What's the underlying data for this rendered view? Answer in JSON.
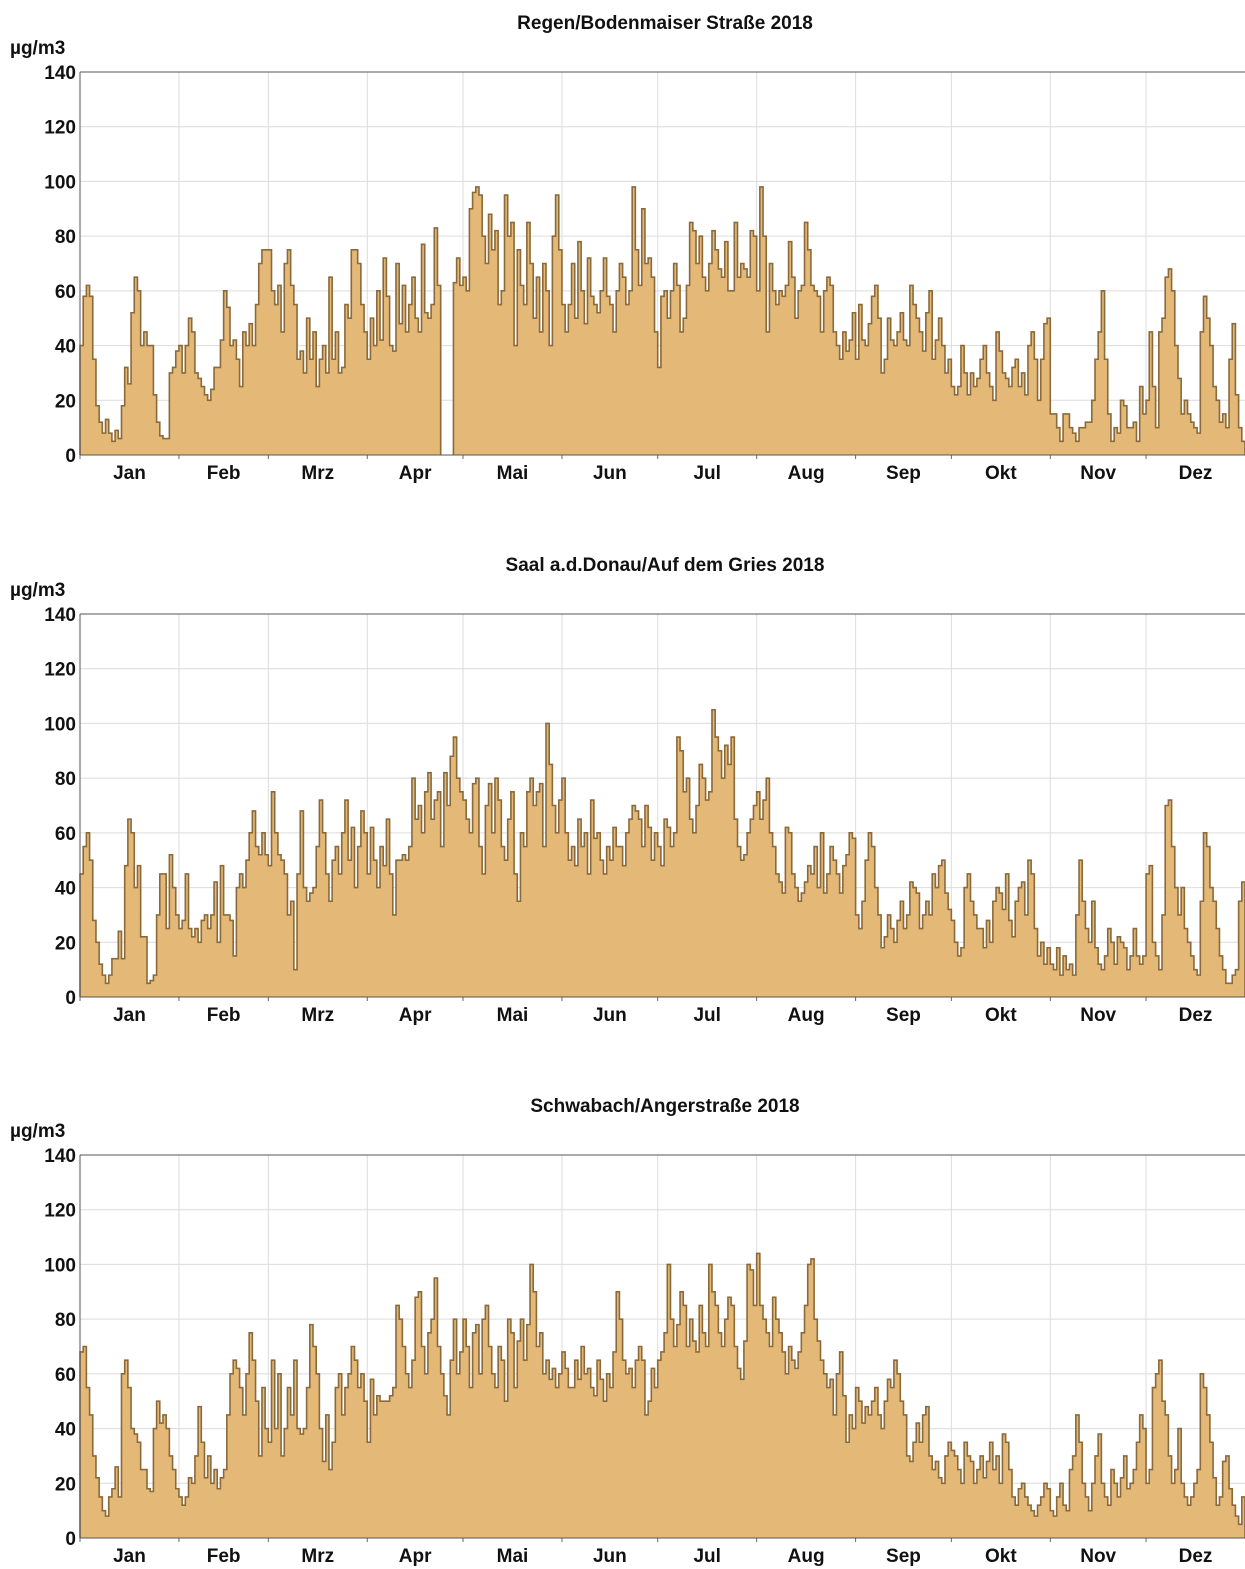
{
  "chart_data": [
    {
      "type": "step-area",
      "title": "Regen/Bodenmaiser Straße 2018",
      "y_label": "µg/m3",
      "color": "#e4b978",
      "line_color": "#8a6a3a",
      "grid": true,
      "xlim": [
        0,
        365
      ],
      "xticks": [
        {
          "value": 0,
          "label": "Jan"
        },
        {
          "value": 31,
          "label": "Feb"
        },
        {
          "value": 59,
          "label": "Mrz"
        },
        {
          "value": 90,
          "label": "Apr"
        },
        {
          "value": 120,
          "label": "Mai"
        },
        {
          "value": 151,
          "label": "Jun"
        },
        {
          "value": 181,
          "label": "Jul"
        },
        {
          "value": 212,
          "label": "Aug"
        },
        {
          "value": 243,
          "label": "Sep"
        },
        {
          "value": 273,
          "label": "Okt"
        },
        {
          "value": 304,
          "label": "Nov"
        },
        {
          "value": 334,
          "label": "Dez"
        }
      ],
      "ylim": [
        0,
        140
      ],
      "yticks": [
        0,
        20,
        40,
        60,
        80,
        100,
        120,
        140
      ],
      "values": [
        40,
        58,
        62,
        58,
        35,
        18,
        12,
        8,
        13,
        8,
        5,
        9,
        6,
        18,
        32,
        26,
        52,
        65,
        60,
        40,
        45,
        40,
        40,
        22,
        12,
        7,
        6,
        6,
        30,
        32,
        38,
        40,
        30,
        40,
        50,
        45,
        30,
        28,
        25,
        22,
        20,
        24,
        32,
        32,
        42,
        60,
        54,
        40,
        42,
        35,
        25,
        45,
        40,
        48,
        40,
        55,
        70,
        75,
        75,
        75,
        60,
        55,
        62,
        45,
        70,
        75,
        62,
        55,
        35,
        38,
        30,
        50,
        35,
        45,
        25,
        35,
        40,
        30,
        65,
        35,
        45,
        30,
        32,
        55,
        50,
        75,
        75,
        70,
        55,
        45,
        35,
        50,
        40,
        60,
        42,
        72,
        58,
        40,
        38,
        70,
        48,
        62,
        45,
        55,
        65,
        50,
        45,
        77,
        52,
        50,
        55,
        83,
        62,
        null,
        null,
        null,
        null,
        63,
        72,
        62,
        65,
        60,
        90,
        96,
        98,
        95,
        80,
        70,
        88,
        75,
        82,
        55,
        60,
        95,
        80,
        85,
        40,
        75,
        62,
        55,
        85,
        70,
        50,
        65,
        45,
        70,
        60,
        40,
        80,
        95,
        75,
        55,
        45,
        55,
        70,
        50,
        78,
        60,
        48,
        72,
        58,
        55,
        52,
        60,
        72,
        58,
        55,
        45,
        60,
        70,
        65,
        55,
        60,
        98,
        75,
        62,
        90,
        70,
        72,
        65,
        45,
        32,
        58,
        60,
        50,
        60,
        70,
        62,
        45,
        50,
        62,
        85,
        82,
        70,
        80,
        65,
        60,
        70,
        82,
        75,
        68,
        65,
        78,
        60,
        60,
        85,
        65,
        70,
        68,
        65,
        82,
        80,
        60,
        98,
        80,
        45,
        70,
        60,
        55,
        60,
        58,
        62,
        78,
        65,
        50,
        60,
        62,
        85,
        75,
        62,
        60,
        58,
        45,
        60,
        65,
        62,
        45,
        40,
        35,
        45,
        38,
        42,
        52,
        35,
        55,
        42,
        40,
        48,
        58,
        62,
        50,
        30,
        35,
        50,
        42,
        40,
        45,
        52,
        42,
        40,
        62,
        55,
        50,
        45,
        38,
        52,
        60,
        35,
        42,
        50,
        40,
        30,
        35,
        25,
        22,
        25,
        40,
        30,
        22,
        30,
        25,
        28,
        35,
        40,
        30,
        25,
        20,
        45,
        38,
        30,
        28,
        25,
        32,
        35,
        25,
        30,
        22,
        40,
        45,
        35,
        20,
        35,
        48,
        50,
        15,
        15,
        10,
        5,
        15,
        15,
        10,
        8,
        5,
        10,
        10,
        12,
        12,
        20,
        35,
        45,
        60,
        35,
        15,
        5,
        10,
        8,
        20,
        18,
        10,
        10,
        12,
        5,
        25,
        15,
        20,
        45,
        25,
        10,
        45,
        50,
        65,
        68,
        60,
        40,
        28,
        15,
        20,
        15,
        12,
        10,
        8,
        45,
        58,
        50,
        40,
        25,
        20,
        12,
        15,
        10,
        35,
        48,
        22,
        10,
        5
      ]
    },
    {
      "type": "step-area",
      "title": "Saal a.d.Donau/Auf dem Gries 2018",
      "y_label": "µg/m3",
      "color": "#e4b978",
      "line_color": "#8a6a3a",
      "grid": true,
      "xlim": [
        0,
        365
      ],
      "xticks": [
        {
          "value": 0,
          "label": "Jan"
        },
        {
          "value": 31,
          "label": "Feb"
        },
        {
          "value": 59,
          "label": "Mrz"
        },
        {
          "value": 90,
          "label": "Apr"
        },
        {
          "value": 120,
          "label": "Mai"
        },
        {
          "value": 151,
          "label": "Jun"
        },
        {
          "value": 181,
          "label": "Jul"
        },
        {
          "value": 212,
          "label": "Aug"
        },
        {
          "value": 243,
          "label": "Sep"
        },
        {
          "value": 273,
          "label": "Okt"
        },
        {
          "value": 304,
          "label": "Nov"
        },
        {
          "value": 334,
          "label": "Dez"
        }
      ],
      "ylim": [
        0,
        140
      ],
      "yticks": [
        0,
        20,
        40,
        60,
        80,
        100,
        120,
        140
      ],
      "values": [
        45,
        55,
        60,
        50,
        28,
        20,
        12,
        8,
        5,
        8,
        14,
        14,
        24,
        14,
        48,
        65,
        60,
        40,
        48,
        22,
        22,
        5,
        6,
        8,
        30,
        45,
        45,
        25,
        52,
        40,
        30,
        25,
        28,
        45,
        25,
        22,
        25,
        20,
        28,
        30,
        25,
        30,
        42,
        20,
        48,
        30,
        30,
        28,
        15,
        40,
        45,
        40,
        50,
        60,
        68,
        55,
        52,
        60,
        52,
        48,
        75,
        60,
        52,
        50,
        45,
        30,
        35,
        10,
        45,
        68,
        40,
        35,
        38,
        40,
        55,
        72,
        60,
        45,
        35,
        50,
        55,
        45,
        60,
        72,
        50,
        62,
        40,
        55,
        68,
        60,
        45,
        62,
        50,
        40,
        55,
        48,
        65,
        45,
        30,
        50,
        50,
        52,
        50,
        55,
        80,
        65,
        70,
        60,
        75,
        82,
        65,
        72,
        75,
        55,
        82,
        70,
        88,
        95,
        80,
        75,
        72,
        65,
        60,
        78,
        80,
        55,
        45,
        70,
        78,
        60,
        80,
        72,
        55,
        50,
        65,
        75,
        45,
        35,
        60,
        55,
        75,
        80,
        70,
        75,
        78,
        55,
        100,
        85,
        70,
        60,
        72,
        80,
        60,
        50,
        55,
        48,
        65,
        55,
        60,
        45,
        72,
        58,
        60,
        50,
        45,
        55,
        50,
        62,
        55,
        55,
        48,
        60,
        65,
        70,
        68,
        65,
        55,
        70,
        62,
        50,
        60,
        55,
        48,
        65,
        62,
        55,
        60,
        95,
        90,
        75,
        80,
        65,
        60,
        70,
        85,
        80,
        72,
        75,
        105,
        95,
        90,
        80,
        92,
        85,
        95,
        65,
        55,
        50,
        52,
        60,
        65,
        70,
        75,
        65,
        72,
        80,
        60,
        55,
        45,
        42,
        38,
        62,
        60,
        45,
        40,
        35,
        38,
        42,
        48,
        45,
        55,
        40,
        60,
        38,
        45,
        55,
        50,
        45,
        38,
        48,
        52,
        60,
        58,
        30,
        25,
        35,
        50,
        60,
        55,
        40,
        30,
        18,
        22,
        30,
        25,
        20,
        28,
        35,
        25,
        30,
        42,
        40,
        38,
        25,
        30,
        35,
        30,
        45,
        40,
        48,
        50,
        38,
        32,
        28,
        20,
        15,
        18,
        40,
        45,
        35,
        30,
        25,
        25,
        18,
        28,
        20,
        35,
        40,
        38,
        32,
        45,
        28,
        22,
        35,
        40,
        42,
        30,
        50,
        45,
        25,
        15,
        20,
        12,
        18,
        12,
        10,
        18,
        8,
        15,
        10,
        12,
        8,
        30,
        50,
        35,
        25,
        20,
        35,
        18,
        12,
        10,
        15,
        25,
        20,
        12,
        22,
        20,
        18,
        10,
        15,
        25,
        15,
        12,
        15,
        45,
        48,
        20,
        15,
        10,
        30,
        70,
        72,
        55,
        40,
        30,
        40,
        25,
        20,
        15,
        10,
        8,
        35,
        60,
        55,
        40,
        35,
        25,
        15,
        10,
        5,
        5,
        8,
        10,
        35,
        42
      ]
    },
    {
      "type": "step-area",
      "title": "Schwabach/Angerstraße 2018",
      "y_label": "µg/m3",
      "color": "#e4b978",
      "line_color": "#8a6a3a",
      "grid": true,
      "xlim": [
        0,
        365
      ],
      "xticks": [
        {
          "value": 0,
          "label": "Jan"
        },
        {
          "value": 31,
          "label": "Feb"
        },
        {
          "value": 59,
          "label": "Mrz"
        },
        {
          "value": 90,
          "label": "Apr"
        },
        {
          "value": 120,
          "label": "Mai"
        },
        {
          "value": 151,
          "label": "Jun"
        },
        {
          "value": 181,
          "label": "Jul"
        },
        {
          "value": 212,
          "label": "Aug"
        },
        {
          "value": 243,
          "label": "Sep"
        },
        {
          "value": 273,
          "label": "Okt"
        },
        {
          "value": 304,
          "label": "Nov"
        },
        {
          "value": 334,
          "label": "Dez"
        }
      ],
      "ylim": [
        0,
        140
      ],
      "yticks": [
        0,
        20,
        40,
        60,
        80,
        100,
        120,
        140
      ],
      "values": [
        68,
        70,
        55,
        45,
        30,
        22,
        15,
        10,
        8,
        15,
        18,
        26,
        15,
        60,
        65,
        55,
        40,
        38,
        35,
        25,
        25,
        18,
        17,
        40,
        50,
        42,
        45,
        40,
        30,
        25,
        18,
        15,
        12,
        15,
        22,
        20,
        30,
        48,
        35,
        22,
        30,
        20,
        25,
        18,
        22,
        25,
        45,
        60,
        65,
        62,
        55,
        45,
        60,
        75,
        65,
        50,
        30,
        55,
        40,
        35,
        65,
        40,
        60,
        30,
        40,
        55,
        45,
        65,
        40,
        38,
        40,
        55,
        78,
        70,
        60,
        40,
        28,
        45,
        25,
        35,
        55,
        60,
        45,
        55,
        60,
        70,
        65,
        55,
        60,
        50,
        35,
        58,
        45,
        52,
        50,
        50,
        50,
        52,
        55,
        85,
        80,
        70,
        60,
        55,
        65,
        88,
        90,
        70,
        60,
        75,
        80,
        95,
        70,
        60,
        52,
        45,
        65,
        80,
        60,
        68,
        80,
        70,
        55,
        75,
        78,
        60,
        80,
        85,
        70,
        60,
        55,
        70,
        65,
        50,
        80,
        75,
        55,
        72,
        80,
        65,
        78,
        100,
        90,
        70,
        75,
        60,
        65,
        58,
        62,
        55,
        60,
        68,
        62,
        55,
        55,
        65,
        58,
        70,
        60,
        62,
        55,
        52,
        65,
        58,
        50,
        60,
        55,
        68,
        90,
        80,
        65,
        60,
        62,
        55,
        65,
        70,
        65,
        45,
        50,
        62,
        55,
        65,
        68,
        75,
        100,
        80,
        70,
        78,
        90,
        85,
        70,
        80,
        72,
        68,
        85,
        75,
        70,
        100,
        90,
        85,
        75,
        70,
        80,
        88,
        85,
        70,
        62,
        58,
        72,
        100,
        98,
        85,
        104,
        85,
        80,
        75,
        70,
        88,
        80,
        75,
        68,
        60,
        70,
        65,
        62,
        68,
        75,
        85,
        100,
        102,
        80,
        72,
        65,
        60,
        55,
        58,
        45,
        60,
        68,
        52,
        35,
        45,
        40,
        55,
        50,
        42,
        48,
        45,
        50,
        55,
        45,
        40,
        50,
        58,
        55,
        65,
        60,
        50,
        45,
        30,
        28,
        35,
        42,
        35,
        45,
        48,
        30,
        25,
        28,
        22,
        20,
        30,
        35,
        32,
        30,
        25,
        20,
        35,
        30,
        28,
        20,
        25,
        30,
        22,
        28,
        35,
        25,
        30,
        20,
        38,
        35,
        25,
        15,
        12,
        18,
        20,
        15,
        12,
        10,
        8,
        12,
        15,
        20,
        18,
        10,
        8,
        15,
        20,
        12,
        10,
        25,
        30,
        45,
        35,
        20,
        15,
        10,
        20,
        30,
        38,
        20,
        15,
        12,
        25,
        20,
        15,
        22,
        30,
        18,
        20,
        25,
        35,
        45,
        40,
        20,
        25,
        55,
        60,
        65,
        50,
        45,
        30,
        20,
        25,
        40,
        20,
        15,
        12,
        15,
        20,
        25,
        60,
        55,
        45,
        35,
        22,
        12,
        15,
        28,
        30,
        18,
        12,
        8,
        5,
        15
      ]
    }
  ]
}
